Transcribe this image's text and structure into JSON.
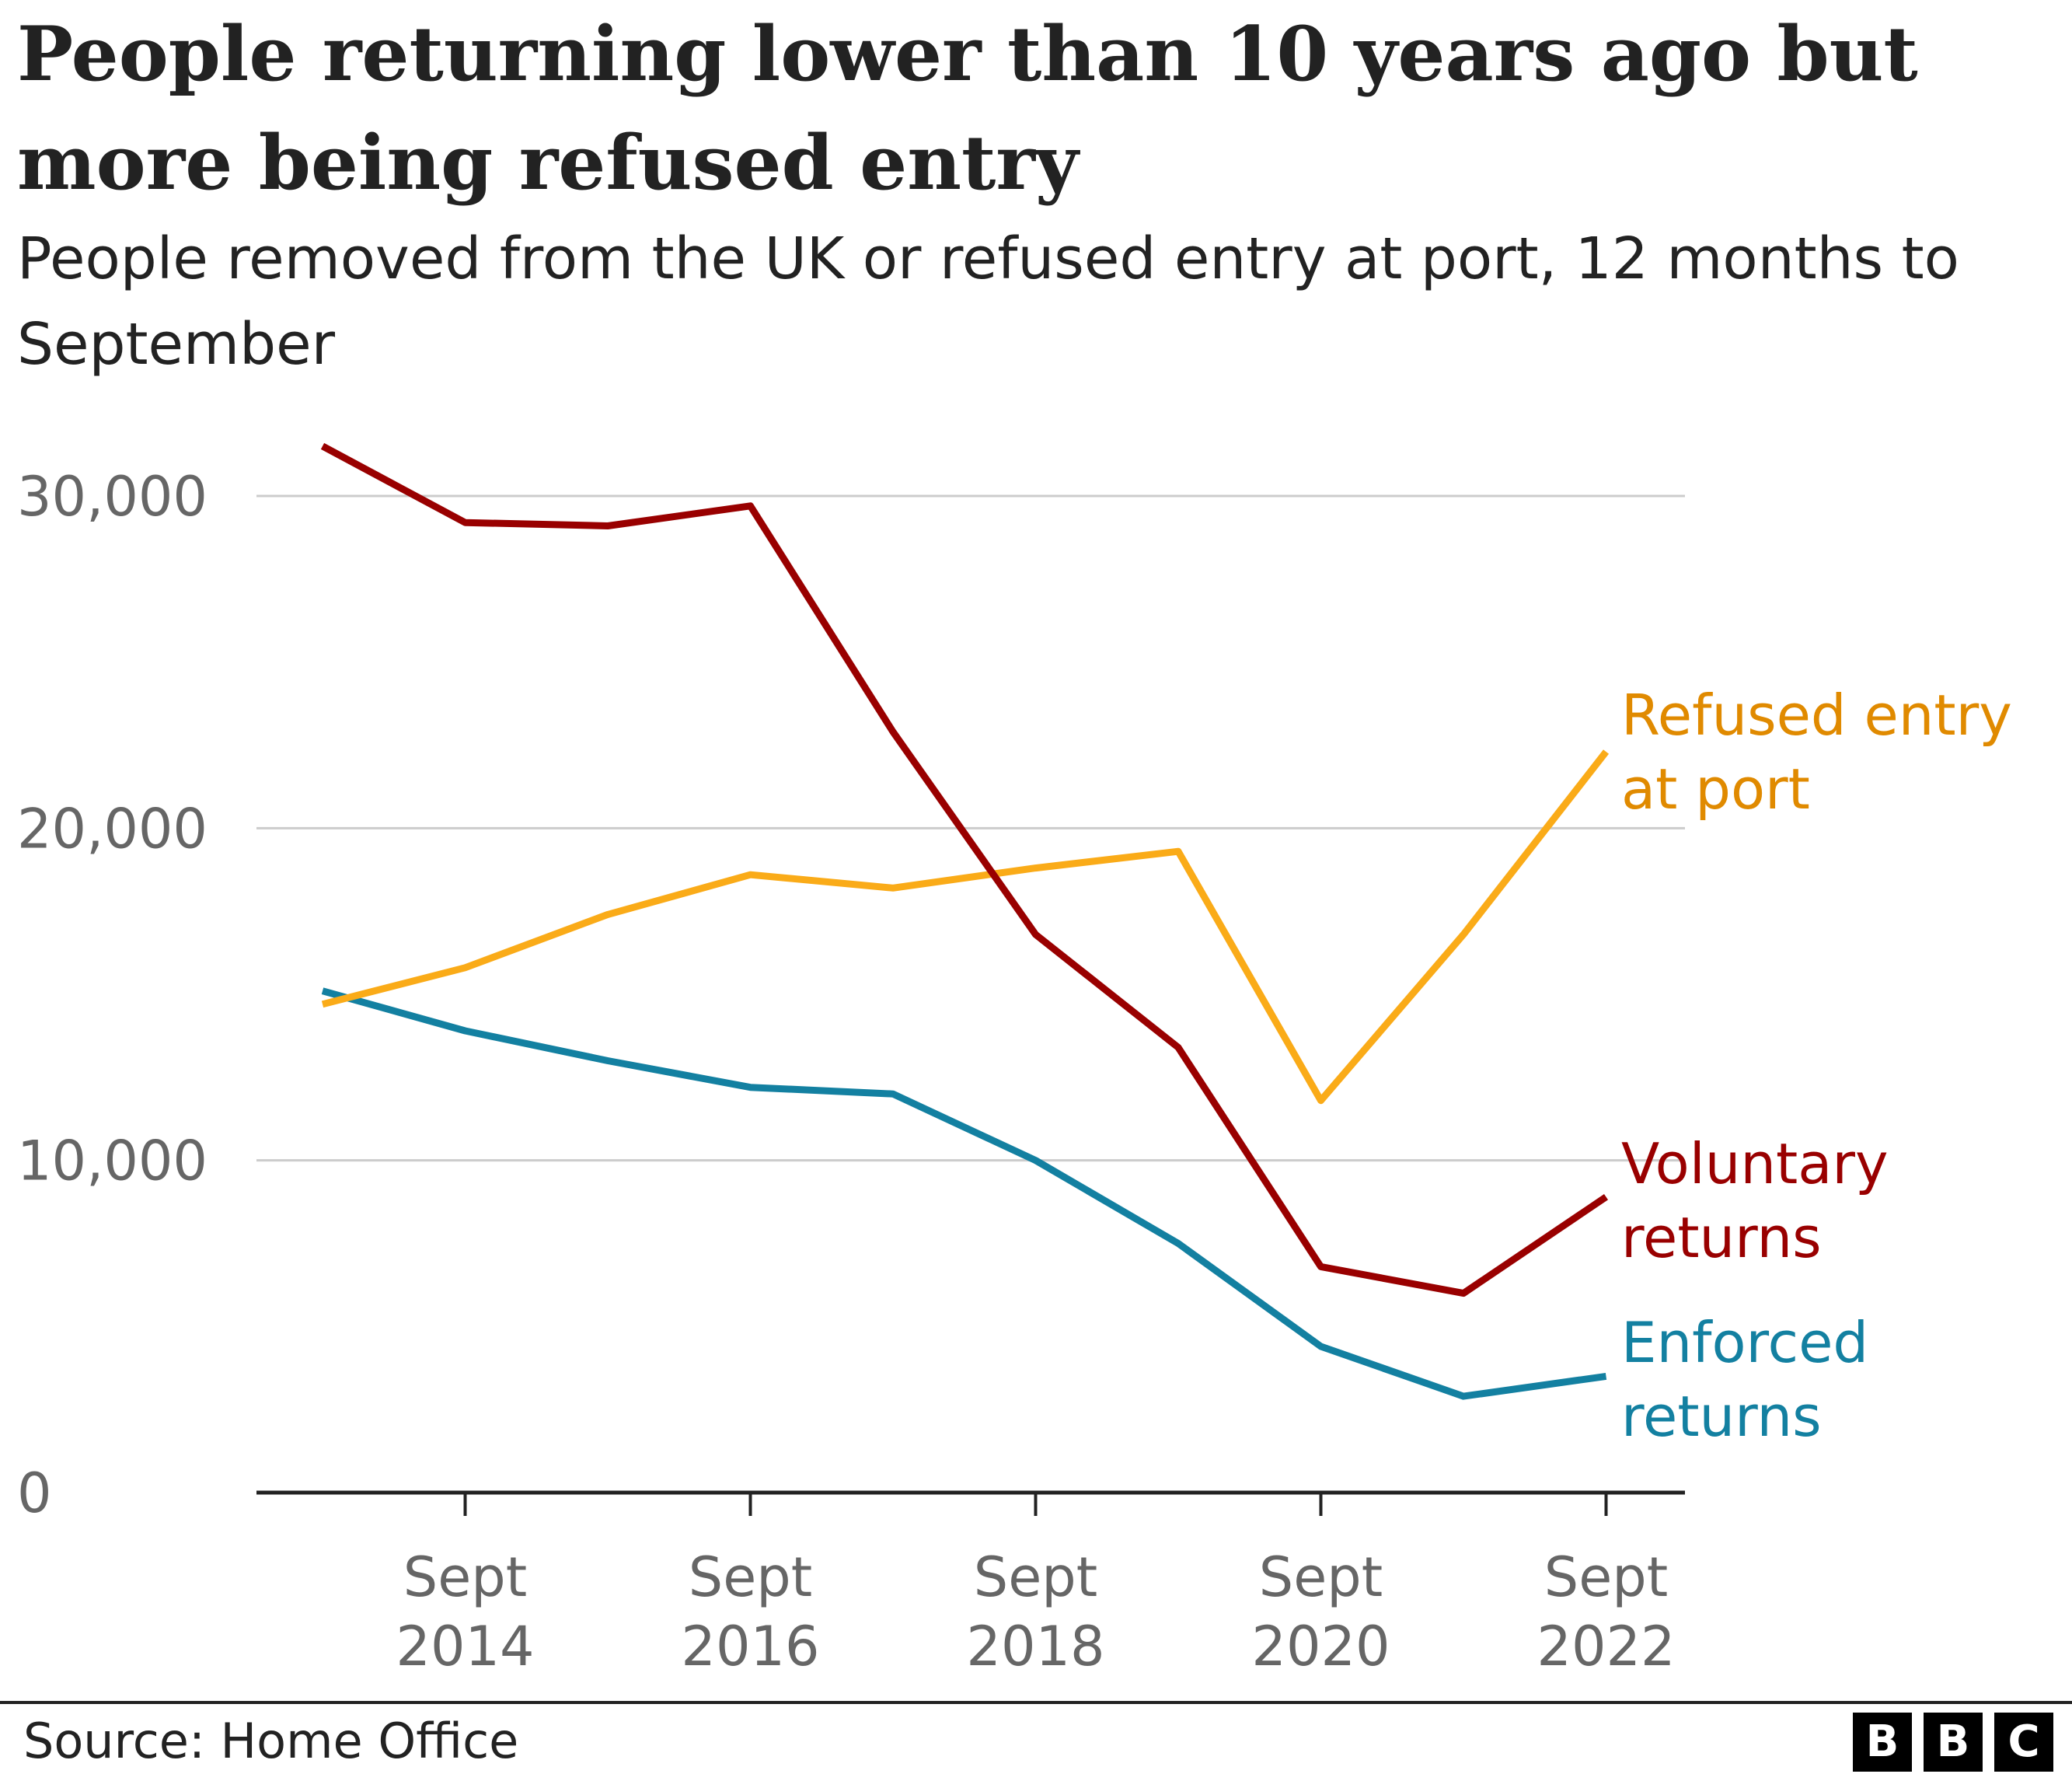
{
  "chart_data": {
    "type": "line",
    "title": "People returning lower than 10 years ago but more being refused entry",
    "subtitle": "People removed from the UK or refused entry at port, 12 months to September",
    "x": [
      2013,
      2014,
      2015,
      2016,
      2017,
      2018,
      2019,
      2020,
      2021,
      2022
    ],
    "x_tick_values": [
      2014,
      2016,
      2018,
      2020,
      2022
    ],
    "x_tick_labels": [
      {
        "line1": "Sept",
        "line2": "2014"
      },
      {
        "line1": "Sept",
        "line2": "2016"
      },
      {
        "line1": "Sept",
        "line2": "2018"
      },
      {
        "line1": "Sept",
        "line2": "2020"
      },
      {
        "line1": "Sept",
        "line2": "2022"
      }
    ],
    "y_ticks": [
      0,
      10000,
      20000,
      30000
    ],
    "y_tick_labels": [
      "0",
      "10,000",
      "20,000",
      "30,000"
    ],
    "ylim": [
      0,
      32000
    ],
    "xlabel": "",
    "ylabel": "",
    "grid": true,
    "series": [
      {
        "key": "voluntary",
        "name": "Voluntary returns",
        "label_lines": [
          "Voluntary",
          "returns"
        ],
        "color": "#990000",
        "values": [
          31500,
          29200,
          29100,
          29700,
          22900,
          16800,
          13400,
          6800,
          6000,
          8900
        ]
      },
      {
        "key": "refused",
        "name": "Refused entry at port",
        "label_lines": [
          "Refused entry",
          "at port"
        ],
        "color": "#FAAB18",
        "label_color": "#E08A00",
        "values": [
          14700,
          15800,
          17400,
          18600,
          18200,
          18800,
          19300,
          11800,
          16800,
          22300
        ]
      },
      {
        "key": "enforced",
        "name": "Enforced returns",
        "label_lines": [
          "Enforced",
          "returns"
        ],
        "color": "#1380A1",
        "values": [
          15100,
          13900,
          13000,
          12200,
          12000,
          10000,
          7500,
          4400,
          2900,
          3500
        ]
      }
    ]
  },
  "footer": {
    "source": "Source: Home Office",
    "logo_letters": [
      "B",
      "B",
      "C"
    ]
  }
}
